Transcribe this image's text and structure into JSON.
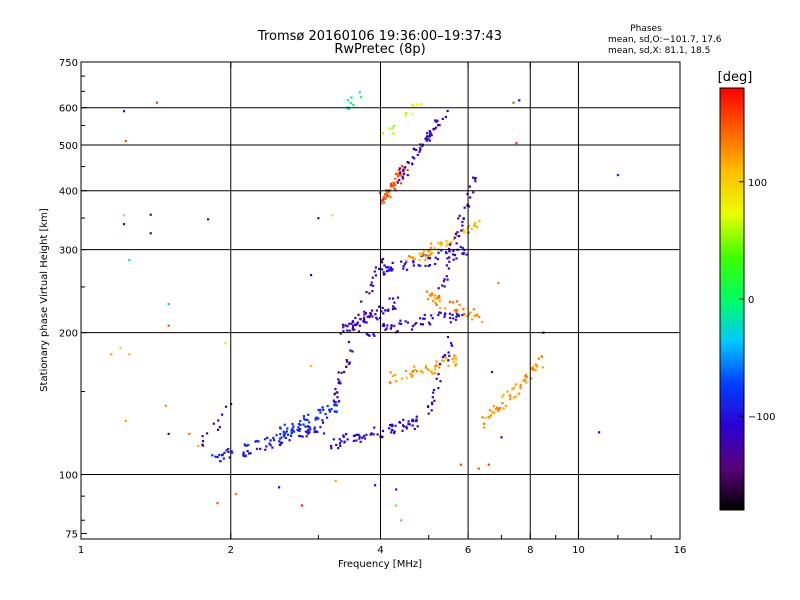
{
  "chart_data": {
    "type": "scatter",
    "title": "Tromsø 20160106 19:36:00–19:37:43",
    "subtitle": "RwPretec (8p)",
    "phases_heading": "Phases",
    "phases_line1": "mean, sd,O:−101.7, 17.6",
    "phases_line2": "mean, sd,X:  81.1, 18.5",
    "xlabel": "Frequency [MHz]",
    "ylabel": "Stationary phase Virtual Height [km]",
    "x_scale": "log",
    "y_scale": "log",
    "xlim": [
      1,
      16
    ],
    "ylim": [
      73,
      750
    ],
    "x_ticks": [
      1,
      2,
      4,
      6,
      8,
      10,
      16
    ],
    "x_tick_labels": [
      "1",
      "2",
      "4",
      "6",
      "8",
      "10",
      "16"
    ],
    "y_ticks": [
      75,
      100,
      200,
      300,
      400,
      500,
      600,
      750
    ],
    "y_tick_labels": [
      "75",
      "100",
      "200",
      "300",
      "400",
      "500",
      "600",
      "750"
    ],
    "grid": true,
    "colorbar": {
      "label": "[deg]",
      "range": [
        -180,
        180
      ],
      "ticks": [
        100,
        0,
        -100
      ],
      "tick_labels": [
        "100",
        "0",
        "−100"
      ],
      "colors": [
        "#000000",
        "#5a007a",
        "#2b00d4",
        "#0040ff",
        "#00c8ff",
        "#00ff60",
        "#40ff00",
        "#e8ff00",
        "#ffc000",
        "#ff6000",
        "#ff0000"
      ]
    },
    "traces": [
      {
        "x0": 1.85,
        "x1": 3.05,
        "h0": 108,
        "h1": 126,
        "phase": -95,
        "n": 80
      },
      {
        "x0": 2.5,
        "x1": 3.3,
        "h0": 122,
        "h1": 140,
        "phase": -85,
        "n": 60
      },
      {
        "x0": 3.05,
        "x1": 4.8,
        "h0": 115,
        "h1": 130,
        "phase": -110,
        "n": 70
      },
      {
        "x0": 3.3,
        "x1": 4.3,
        "h0": 200,
        "h1": 233,
        "phase": -120,
        "n": 60
      },
      {
        "x0": 3.7,
        "x1": 5.9,
        "h0": 200,
        "h1": 220,
        "phase": -110,
        "n": 55
      },
      {
        "x0": 4.0,
        "x1": 6.1,
        "h0": 270,
        "h1": 300,
        "phase": -105,
        "n": 60
      },
      {
        "x0": 4.2,
        "x1": 5.7,
        "h0": 160,
        "h1": 175,
        "phase": 120,
        "n": 45
      },
      {
        "x0": 4.5,
        "x1": 6.3,
        "h0": 280,
        "h1": 340,
        "phase": 115,
        "n": 50
      },
      {
        "x0": 4.9,
        "x1": 6.5,
        "h0": 240,
        "h1": 215,
        "phase": 130,
        "n": 40
      },
      {
        "x0": 6.4,
        "x1": 8.5,
        "h0": 127,
        "h1": 175,
        "phase": 125,
        "n": 60
      },
      {
        "x0": 4.0,
        "x1": 4.5,
        "h0": 380,
        "h1": 450,
        "phase": 150,
        "n": 55
      },
      {
        "x0": 4.3,
        "x1": 5.4,
        "h0": 420,
        "h1": 580,
        "phase": -115,
        "n": 55
      },
      {
        "x0": 5.3,
        "x1": 6.2,
        "h0": 250,
        "h1": 430,
        "phase": -125,
        "n": 40
      },
      {
        "x0": 3.2,
        "x1": 4.0,
        "h0": 140,
        "h1": 290,
        "phase": -130,
        "n": 45
      },
      {
        "x0": 5.0,
        "x1": 5.6,
        "h0": 135,
        "h1": 200,
        "phase": -120,
        "n": 25
      },
      {
        "x0": 3.3,
        "x1": 3.7,
        "h0": 600,
        "h1": 630,
        "phase": -10,
        "n": 10
      },
      {
        "x0": 4.0,
        "x1": 4.8,
        "h0": 520,
        "h1": 620,
        "phase": 60,
        "n": 12
      },
      {
        "x0": 1.75,
        "x1": 2.0,
        "h0": 115,
        "h1": 140,
        "phase": -120,
        "n": 12
      }
    ],
    "points": [
      {
        "x": 1.22,
        "h": 590,
        "phase": -140
      },
      {
        "x": 1.23,
        "h": 510,
        "phase": 150
      },
      {
        "x": 1.42,
        "h": 615,
        "phase": 160
      },
      {
        "x": 1.22,
        "h": 355,
        "phase": 100
      },
      {
        "x": 1.22,
        "h": 340,
        "phase": -110
      },
      {
        "x": 1.38,
        "h": 356,
        "phase": -120
      },
      {
        "x": 1.38,
        "h": 325,
        "phase": -130
      },
      {
        "x": 1.25,
        "h": 285,
        "phase": -20
      },
      {
        "x": 1.5,
        "h": 230,
        "phase": -40
      },
      {
        "x": 1.5,
        "h": 207,
        "phase": 150
      },
      {
        "x": 1.2,
        "h": 186,
        "phase": 100
      },
      {
        "x": 1.25,
        "h": 180,
        "phase": 110
      },
      {
        "x": 1.15,
        "h": 180,
        "phase": 120
      },
      {
        "x": 1.48,
        "h": 140,
        "phase": 130
      },
      {
        "x": 1.5,
        "h": 122,
        "phase": -120
      },
      {
        "x": 1.65,
        "h": 122,
        "phase": 140
      },
      {
        "x": 1.72,
        "h": 115,
        "phase": 120
      },
      {
        "x": 1.23,
        "h": 130,
        "phase": 120
      },
      {
        "x": 1.8,
        "h": 348,
        "phase": -120
      },
      {
        "x": 1.95,
        "h": 190,
        "phase": 60
      },
      {
        "x": 1.88,
        "h": 87,
        "phase": 150
      },
      {
        "x": 2.05,
        "h": 91,
        "phase": 140
      },
      {
        "x": 2.5,
        "h": 94,
        "phase": -120
      },
      {
        "x": 2.78,
        "h": 86,
        "phase": 170
      },
      {
        "x": 3.25,
        "h": 97,
        "phase": 120
      },
      {
        "x": 3.9,
        "h": 95,
        "phase": -110
      },
      {
        "x": 4.3,
        "h": 93,
        "phase": -100
      },
      {
        "x": 4.3,
        "h": 86,
        "phase": 40
      },
      {
        "x": 4.4,
        "h": 80,
        "phase": 30
      },
      {
        "x": 2.9,
        "h": 170,
        "phase": 110
      },
      {
        "x": 2.9,
        "h": 265,
        "phase": -120
      },
      {
        "x": 3.0,
        "h": 350,
        "phase": -120
      },
      {
        "x": 3.2,
        "h": 355,
        "phase": 60
      },
      {
        "x": 5.8,
        "h": 105,
        "phase": 160
      },
      {
        "x": 6.3,
        "h": 103,
        "phase": 150
      },
      {
        "x": 6.6,
        "h": 105,
        "phase": 160
      },
      {
        "x": 7.5,
        "h": 505,
        "phase": 160
      },
      {
        "x": 7.6,
        "h": 622,
        "phase": -120
      },
      {
        "x": 7.4,
        "h": 615,
        "phase": 150
      },
      {
        "x": 6.9,
        "h": 255,
        "phase": 130
      },
      {
        "x": 6.7,
        "h": 165,
        "phase": -120
      },
      {
        "x": 8.5,
        "h": 200,
        "phase": -110
      },
      {
        "x": 11.0,
        "h": 123,
        "phase": -110
      },
      {
        "x": 12.0,
        "h": 432,
        "phase": -80
      },
      {
        "x": 7.0,
        "h": 120,
        "phase": -110
      }
    ]
  }
}
